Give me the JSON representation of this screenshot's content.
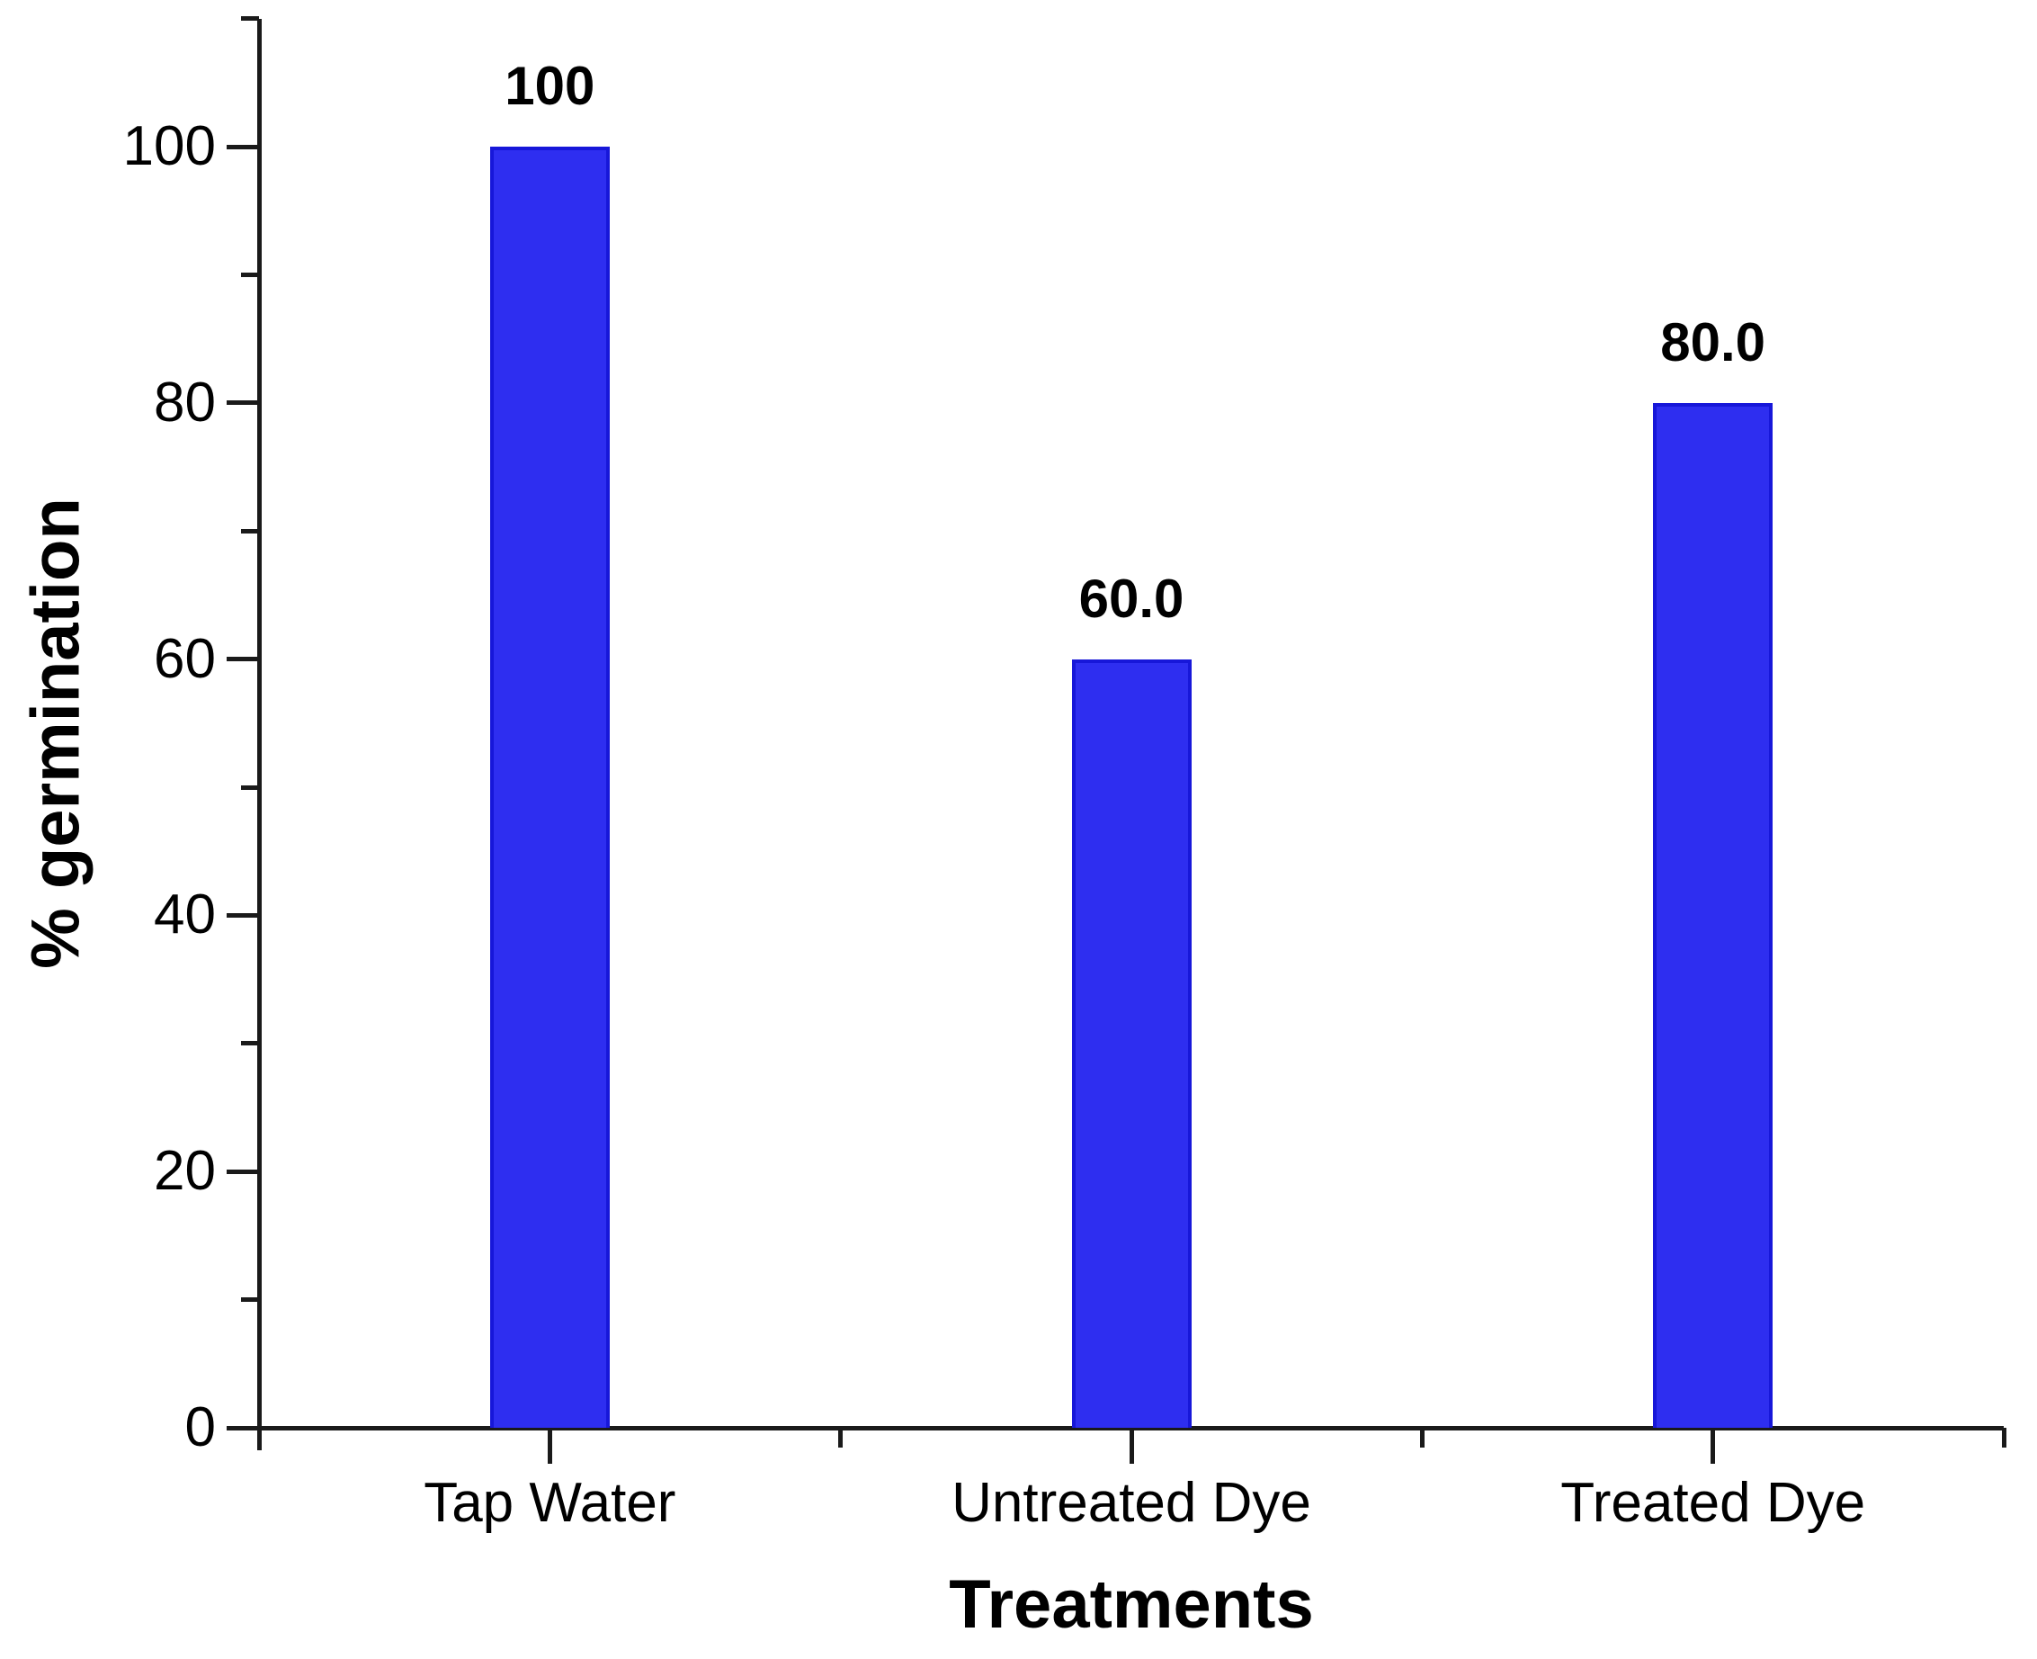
{
  "chart_data": {
    "type": "bar",
    "title": "",
    "categories": [
      "Tap Water",
      "Untreated Dye",
      "Treated Dye"
    ],
    "values": [
      100,
      60,
      80
    ],
    "value_labels": [
      "100",
      "60.0",
      "80.0"
    ],
    "xlabel": "Treatments",
    "ylabel": "% germination",
    "ylim": [
      0,
      110
    ],
    "y_major_ticks": [
      0,
      20,
      40,
      60,
      80,
      100
    ],
    "y_tick_labels": [
      "0",
      "20",
      "40",
      "60",
      "80",
      "100"
    ],
    "y_minor_ticks": [
      10,
      30,
      50,
      70,
      90,
      110
    ],
    "grid": false,
    "legend": "none",
    "bar_color": "#2e2ef0",
    "bar_border_color": "#1717d9",
    "axis_color": "#1a1a1a",
    "text_color": "#000000"
  }
}
